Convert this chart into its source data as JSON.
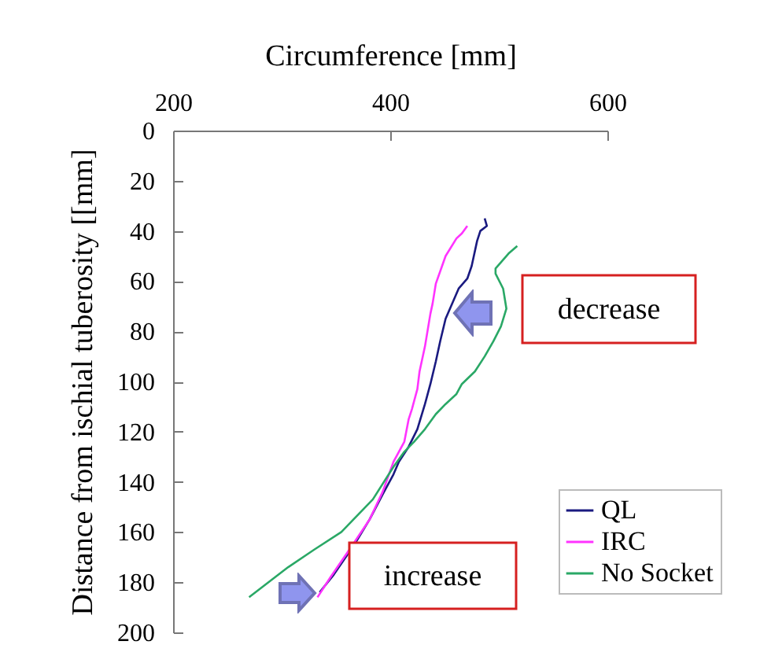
{
  "chart_data": {
    "type": "line",
    "xlabel": "Circumference [mm]",
    "ylabel": "Distance from ischial tuberosity [[mm]",
    "xlim": [
      200,
      600
    ],
    "xticks": [
      200,
      400,
      600
    ],
    "ylim": [
      200,
      0
    ],
    "yticks": [
      0,
      20,
      40,
      60,
      80,
      100,
      120,
      140,
      160,
      180,
      200
    ],
    "legend": "bottom right",
    "grid": false,
    "marker": "none",
    "line_style": "solid",
    "annotations": [
      "decrease",
      "increase"
    ],
    "series": [
      {
        "name": "QL",
        "color": "#1a1a80",
        "x": [
          487,
          489,
          483,
          480,
          475,
          471,
          463,
          451,
          446,
          442,
          437,
          432,
          425,
          417,
          408,
          403,
          393,
          381,
          367,
          348,
          335
        ],
        "values": [
          35,
          38,
          40,
          44,
          54,
          59,
          63,
          75,
          84,
          92,
          101,
          109,
          119,
          126,
          132,
          137,
          145,
          155,
          165,
          177,
          184
        ]
      },
      {
        "name": "IRC",
        "color": "#ff33ff",
        "x": [
          471,
          466,
          461,
          451,
          442,
          439,
          437,
          432,
          427,
          425,
          420,
          417,
          413,
          408,
          403,
          393,
          381,
          364,
          345,
          333
        ],
        "values": [
          38,
          41,
          43,
          50,
          61,
          69,
          73,
          86,
          96,
          103,
          111,
          115,
          124,
          128,
          132,
          144,
          155,
          166,
          178,
          186
        ]
      },
      {
        "name": "No Socket",
        "color": "#2aa866",
        "x": [
          517,
          509,
          497,
          497,
          504,
          507,
          502,
          495,
          487,
          478,
          466,
          461,
          451,
          442,
          432,
          422,
          413,
          403,
          384,
          355,
          330,
          306,
          270
        ],
        "values": [
          46,
          49,
          55,
          57,
          63,
          71,
          78,
          84,
          90,
          96,
          101,
          105,
          109,
          113,
          119,
          124,
          128,
          134,
          147,
          160,
          167,
          174,
          186
        ]
      }
    ]
  }
}
